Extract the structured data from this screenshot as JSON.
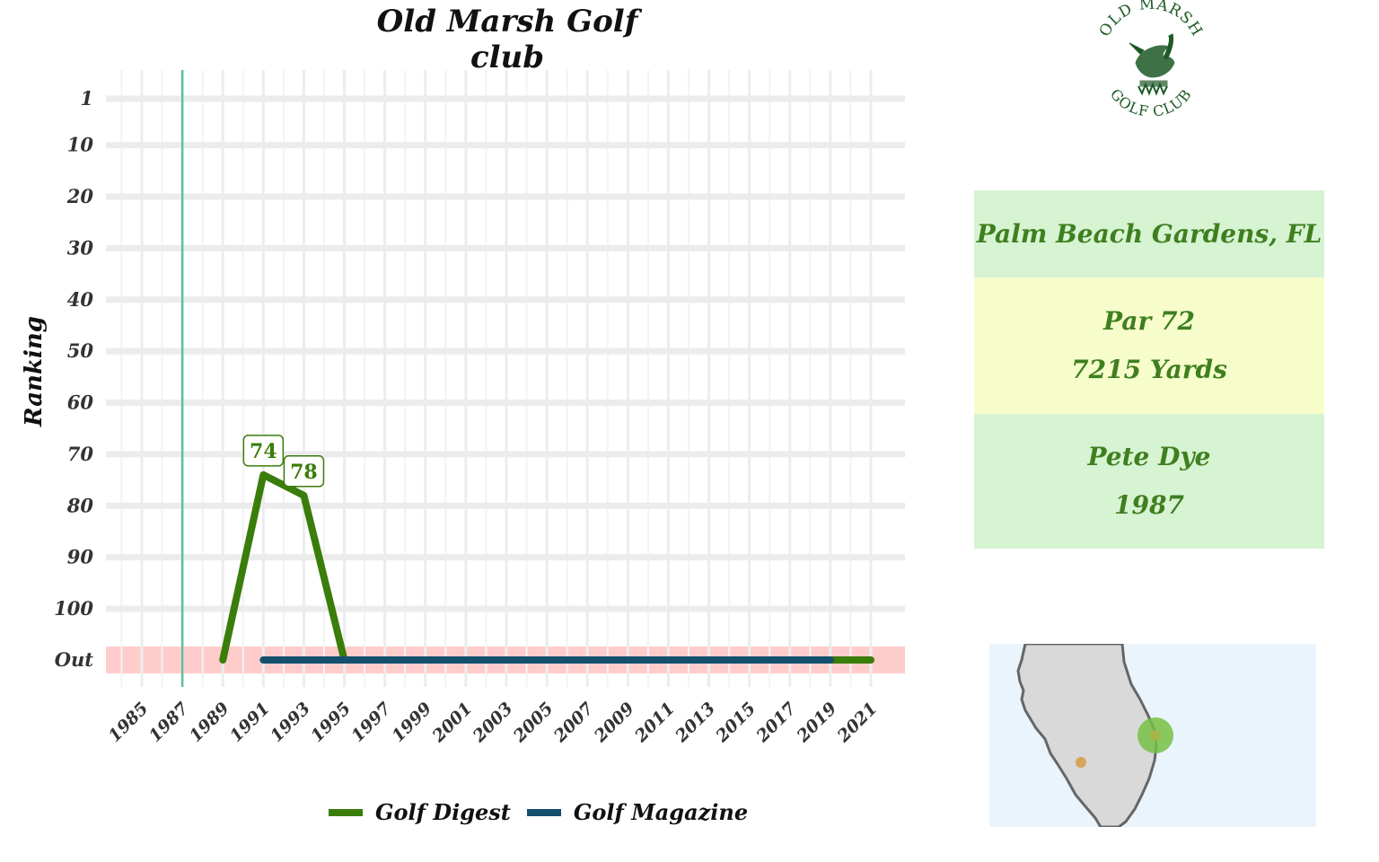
{
  "chart_data": {
    "type": "line",
    "title": "Old Marsh Golf club",
    "xlabel": "",
    "ylabel": "Ranking",
    "x_ticks": [
      "1985",
      "1987",
      "1989",
      "1991",
      "1993",
      "1995",
      "1997",
      "1999",
      "2001",
      "2003",
      "2005",
      "2007",
      "2009",
      "2011",
      "2013",
      "2015",
      "2017",
      "2019",
      "2021"
    ],
    "y_ticks": [
      "1",
      "10",
      "20",
      "30",
      "40",
      "50",
      "60",
      "70",
      "80",
      "90",
      "100",
      "Out"
    ],
    "ylim": [
      1,
      105
    ],
    "y_reversed": true,
    "out_band_label": "Out",
    "reference_line_year": 1987,
    "grid": true,
    "legend_position": "bottom",
    "series": [
      {
        "name": "Golf Digest",
        "color": "#3a7d0a",
        "points": [
          {
            "year": 1989,
            "rank": "Out"
          },
          {
            "year": 1991,
            "rank": 74
          },
          {
            "year": 1993,
            "rank": 78
          },
          {
            "year": 1995,
            "rank": "Out"
          },
          {
            "year": 2021,
            "rank": "Out"
          }
        ],
        "labels": [
          {
            "year": 1991,
            "text": "74"
          },
          {
            "year": 1993,
            "text": "78"
          }
        ]
      },
      {
        "name": "Golf Magazine",
        "color": "#14506e",
        "points": [
          {
            "year": 1991,
            "rank": "Out"
          },
          {
            "year": 2019,
            "rank": "Out"
          }
        ]
      }
    ]
  },
  "logo": {
    "top_text": "OLD MARSH",
    "bottom_text": "GOLF CLUB",
    "color": "#1d5a26"
  },
  "info": {
    "location": "Palm Beach Gardens, FL",
    "par": "Par 72",
    "yards": "7215 Yards",
    "designer": "Pete Dye",
    "year": "1987"
  },
  "colors": {
    "out_band": "#ffcccc",
    "reference_line": "#5cbf9e",
    "info_text": "#3f7f1f",
    "location_bg": "#d6f3d2",
    "course_bg": "#f6fdca",
    "map_water": "#eaf4fd",
    "map_land": "#d9d9d9",
    "map_marker_primary": "#76c043",
    "map_marker_secondary": "#d4a04a"
  }
}
